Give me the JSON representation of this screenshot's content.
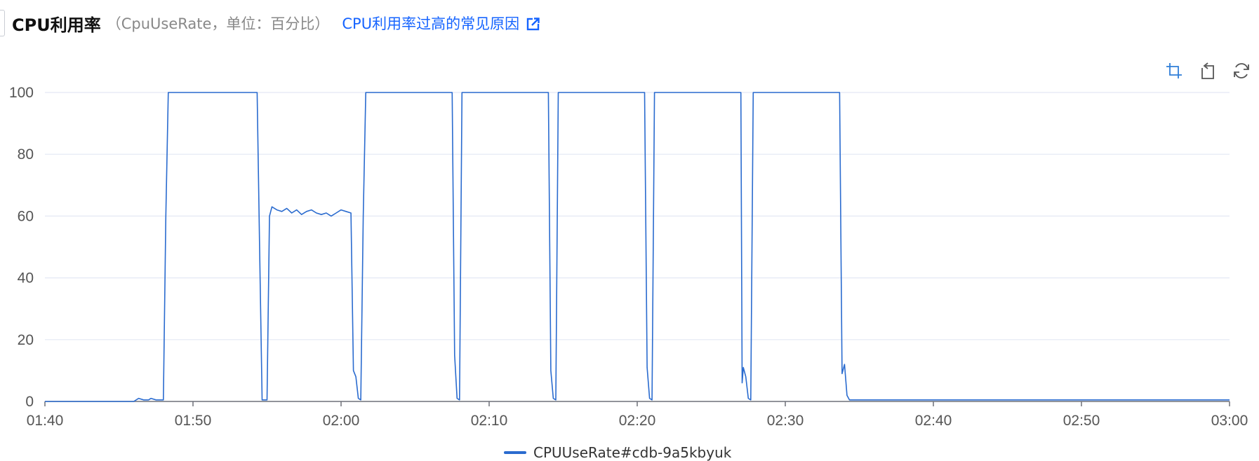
{
  "header": {
    "title": "CPU利用率",
    "subtitle": "（CpuUseRate，单位：百分比）",
    "link_text": "CPU利用率过高的常见原因"
  },
  "toolbar": {
    "icons": [
      "zoom-select-icon",
      "restore-icon",
      "refresh-icon"
    ]
  },
  "colors": {
    "line": "#2a6bcf",
    "link": "#1664ff",
    "grid": "#e3e8f4",
    "axis": "#6e7079"
  },
  "chart_data": {
    "type": "line",
    "title": "",
    "xlabel": "",
    "ylabel": "",
    "ylim": [
      0,
      100
    ],
    "y_ticks": [
      "0",
      "20",
      "40",
      "60",
      "80",
      "100"
    ],
    "x_ticks": [
      "01:40",
      "01:50",
      "02:00",
      "02:10",
      "02:20",
      "02:30",
      "02:40",
      "02:50",
      "03:00"
    ],
    "x_range": [
      "01:40",
      "03:00"
    ],
    "grid": true,
    "legend_position": "bottom-center",
    "series": [
      {
        "name": "CPUUseRate#cdb-9a5kbyuk",
        "points": [
          [
            "01:40:00",
            0
          ],
          [
            "01:46:00",
            0
          ],
          [
            "01:46:20",
            1
          ],
          [
            "01:46:40",
            0.5
          ],
          [
            "01:47:00",
            0.5
          ],
          [
            "01:47:10",
            1
          ],
          [
            "01:47:30",
            0.5
          ],
          [
            "01:48:00",
            0.5
          ],
          [
            "01:48:10",
            60
          ],
          [
            "01:48:20",
            100
          ],
          [
            "01:54:20",
            100
          ],
          [
            "01:54:30",
            50
          ],
          [
            "01:54:40",
            0.5
          ],
          [
            "01:55:00",
            0.5
          ],
          [
            "01:55:10",
            60
          ],
          [
            "01:55:20",
            63
          ],
          [
            "01:55:40",
            62
          ],
          [
            "01:56:00",
            61.5
          ],
          [
            "01:56:20",
            62.5
          ],
          [
            "01:56:40",
            61
          ],
          [
            "01:57:00",
            62
          ],
          [
            "01:57:20",
            60.5
          ],
          [
            "01:57:40",
            61.5
          ],
          [
            "01:58:00",
            62
          ],
          [
            "01:58:20",
            61
          ],
          [
            "01:58:40",
            60.5
          ],
          [
            "01:59:00",
            61
          ],
          [
            "01:59:20",
            60
          ],
          [
            "01:59:40",
            61
          ],
          [
            "02:00:00",
            62
          ],
          [
            "02:00:20",
            61.5
          ],
          [
            "02:00:40",
            61
          ],
          [
            "02:00:50",
            10
          ],
          [
            "02:01:00",
            8
          ],
          [
            "02:01:10",
            1
          ],
          [
            "02:01:20",
            0.5
          ],
          [
            "02:01:30",
            60
          ],
          [
            "02:01:40",
            100
          ],
          [
            "02:07:30",
            100
          ],
          [
            "02:07:40",
            15
          ],
          [
            "02:07:50",
            1
          ],
          [
            "02:08:00",
            0.5
          ],
          [
            "02:08:10",
            100
          ],
          [
            "02:14:00",
            100
          ],
          [
            "02:14:10",
            10
          ],
          [
            "02:14:20",
            1
          ],
          [
            "02:14:30",
            0.5
          ],
          [
            "02:14:40",
            100
          ],
          [
            "02:20:30",
            100
          ],
          [
            "02:20:40",
            11
          ],
          [
            "02:20:50",
            1
          ],
          [
            "02:21:00",
            0.5
          ],
          [
            "02:21:10",
            100
          ],
          [
            "02:27:00",
            100
          ],
          [
            "02:27:05",
            6
          ],
          [
            "02:27:10",
            11
          ],
          [
            "02:27:20",
            8
          ],
          [
            "02:27:30",
            1
          ],
          [
            "02:27:40",
            0.5
          ],
          [
            "02:27:50",
            100
          ],
          [
            "02:33:40",
            100
          ],
          [
            "02:33:50",
            9
          ],
          [
            "02:34:00",
            12
          ],
          [
            "02:34:10",
            2
          ],
          [
            "02:34:20",
            0.5
          ],
          [
            "02:40:00",
            0.5
          ],
          [
            "02:50:00",
            0.5
          ],
          [
            "03:00:00",
            0.5
          ]
        ]
      }
    ]
  }
}
